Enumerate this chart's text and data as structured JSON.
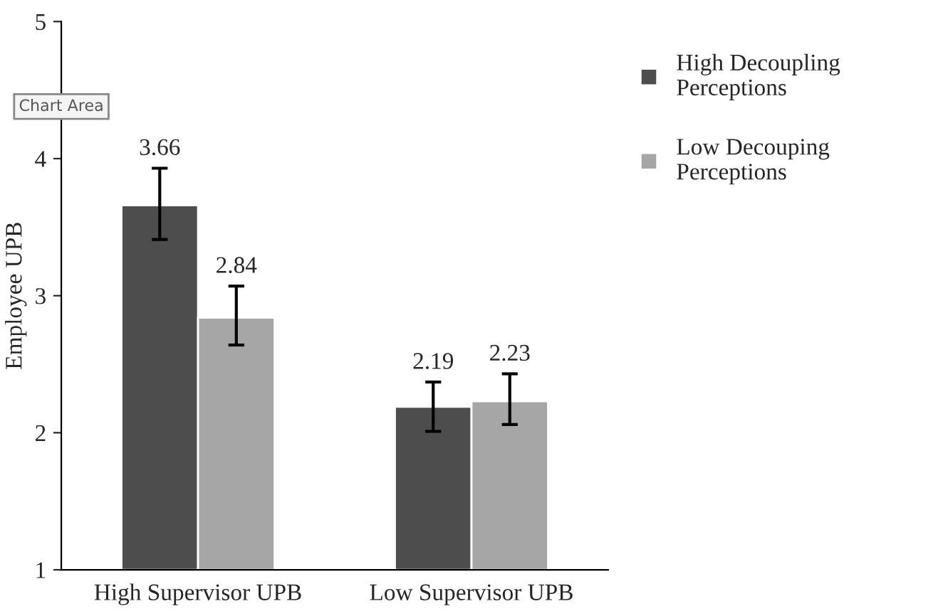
{
  "chart_data": {
    "type": "bar",
    "ylabel": "Employee UPB",
    "categories": [
      "High Supervisor UPB",
      "Low Supervisor UPB"
    ],
    "series": [
      {
        "name": "High Decoupling Perceptions",
        "color": "#4d4d4d",
        "values": [
          3.66,
          2.19
        ],
        "errors": [
          [
            3.41,
            3.93
          ],
          [
            2.01,
            2.37
          ]
        ]
      },
      {
        "name": "Low Decouping Perceptions",
        "color": "#a6a6a6",
        "values": [
          2.84,
          2.23
        ],
        "errors": [
          [
            2.64,
            3.07
          ],
          [
            2.06,
            2.43
          ]
        ]
      }
    ],
    "ylim": [
      1,
      5
    ],
    "yticks": [
      1,
      2,
      3,
      4,
      5
    ],
    "data_labels": true,
    "legend": "right",
    "grid": false,
    "annotations": [
      "Chart Area"
    ]
  }
}
